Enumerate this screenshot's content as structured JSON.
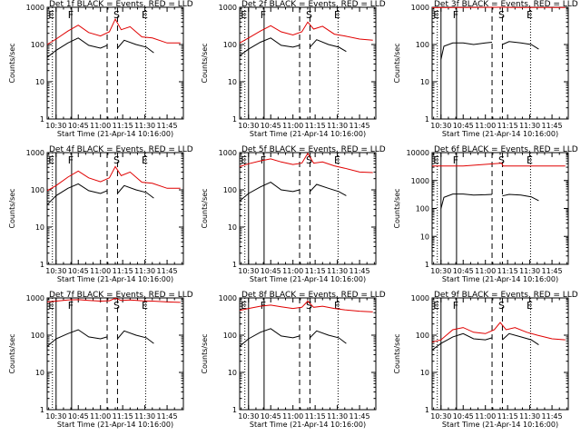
{
  "figure": {
    "xlabel": "Start Time (21-Apr-14 10:16:00)",
    "ylabel": "Counts/sec",
    "xticks": [
      {
        "t": 630,
        "label": "10:30"
      },
      {
        "t": 645,
        "label": "10:45"
      },
      {
        "t": 660,
        "label": "11:00"
      },
      {
        "t": 675,
        "label": "11:15"
      },
      {
        "t": 690,
        "label": "11:30"
      },
      {
        "t": 705,
        "label": "11:45"
      }
    ],
    "yticks": [
      {
        "v": 1,
        "label": "1"
      },
      {
        "v": 10,
        "label": "10"
      },
      {
        "v": 100,
        "label": "100"
      },
      {
        "v": 1000,
        "label": "1000"
      }
    ],
    "yticks_big": [
      {
        "v": 1,
        "label": "1"
      },
      {
        "v": 10,
        "label": "10"
      },
      {
        "v": 100,
        "label": "100"
      },
      {
        "v": 1000,
        "label": "1000"
      },
      {
        "v": 10000,
        "label": "10000"
      }
    ],
    "markers": [
      {
        "t": 627.5,
        "style": "dotted",
        "label": "E"
      },
      {
        "t": 630,
        "style": "solid",
        "label": ""
      },
      {
        "t": 640.5,
        "style": "solid",
        "label": "F"
      },
      {
        "t": 664.5,
        "style": "dashed",
        "label": ""
      },
      {
        "t": 671.5,
        "style": "dashed",
        "label": "S"
      },
      {
        "t": 690.5,
        "style": "dotted",
        "label": "E"
      }
    ],
    "colors": {
      "events": "#000000",
      "lld": "#e00000",
      "axis": "#000000"
    }
  },
  "chart_data": [
    {
      "type": "line",
      "title": "Det 1f BLACK = Events, RED = LLD",
      "xlabel": "Start Time (21-Apr-14 10:16:00)",
      "ylabel": "Counts/sec",
      "xlim": [
        624,
        716
      ],
      "ylim": [
        1,
        1000
      ],
      "scale": "log",
      "series": [
        {
          "name": "LLD",
          "color": "#e00000",
          "t": [
            624,
            630,
            638,
            645,
            652,
            660,
            666,
            670,
            674,
            680,
            688,
            695,
            705,
            714
          ],
          "y": [
            100,
            140,
            230,
            330,
            210,
            170,
            220,
            480,
            250,
            300,
            160,
            150,
            110,
            110
          ]
        },
        {
          "name": "Events",
          "color": "#000000",
          "t": [
            624,
            630,
            638,
            645,
            652,
            660,
            664.5
          ],
          "y": [
            45,
            70,
            110,
            150,
            95,
            80,
            95
          ]
        },
        {
          "name": "Events (after)",
          "color": "#000000",
          "t": [
            671.5,
            676,
            684,
            691,
            696
          ],
          "y": [
            80,
            130,
            100,
            85,
            60
          ]
        }
      ]
    },
    {
      "type": "line",
      "title": "Det 2f BLACK = Events, RED = LLD",
      "xlabel": "Start Time (21-Apr-14 10:16:00)",
      "ylabel": "Counts/sec",
      "xlim": [
        624,
        716
      ],
      "ylim": [
        1,
        1000
      ],
      "scale": "log",
      "series": [
        {
          "name": "LLD",
          "color": "#e00000",
          "t": [
            624,
            630,
            638,
            645,
            652,
            660,
            666,
            670,
            674,
            680,
            688,
            695,
            705,
            714
          ],
          "y": [
            110,
            150,
            230,
            320,
            220,
            180,
            220,
            400,
            260,
            310,
            190,
            170,
            140,
            130
          ]
        },
        {
          "name": "Events",
          "color": "#000000",
          "t": [
            624,
            630,
            638,
            645,
            652,
            660,
            664.5
          ],
          "y": [
            50,
            75,
            115,
            150,
            95,
            85,
            95
          ]
        },
        {
          "name": "Events (after)",
          "color": "#000000",
          "t": [
            671.5,
            676,
            684,
            691,
            696
          ],
          "y": [
            85,
            135,
            100,
            85,
            65
          ]
        }
      ]
    },
    {
      "type": "line",
      "title": "Det 3f BLACK = Events, RED = LLD",
      "xlabel": "Start Time (21-Apr-14 10:16:00)",
      "ylabel": "Counts/sec",
      "xlim": [
        624,
        716
      ],
      "ylim": [
        1,
        1000
      ],
      "scale": "log",
      "series": [
        {
          "name": "LLD",
          "color": "#e00000",
          "t": [
            624,
            645,
            671,
            680,
            714
          ],
          "y": [
            980,
            990,
            1000,
            990,
            985
          ]
        },
        {
          "name": "Events",
          "color": "#000000",
          "t": [
            630,
            632,
            638,
            645,
            652,
            660,
            664.5
          ],
          "y": [
            40,
            90,
            110,
            110,
            100,
            110,
            115
          ]
        },
        {
          "name": "Events (after)",
          "color": "#000000",
          "t": [
            671.5,
            676,
            684,
            691,
            696
          ],
          "y": [
            100,
            120,
            110,
            100,
            75
          ]
        }
      ]
    },
    {
      "type": "line",
      "title": "Det 4f BLACK = Events, RED = LLD",
      "xlabel": "Start Time (21-Apr-14 10:16:00)",
      "ylabel": "Counts/sec",
      "xlim": [
        624,
        716
      ],
      "ylim": [
        1,
        1000
      ],
      "scale": "log",
      "series": [
        {
          "name": "LLD",
          "color": "#e00000",
          "t": [
            624,
            630,
            638,
            645,
            652,
            660,
            666,
            670,
            674,
            680,
            688,
            695,
            705,
            714
          ],
          "y": [
            95,
            130,
            220,
            320,
            210,
            165,
            210,
            420,
            240,
            300,
            160,
            150,
            110,
            110
          ]
        },
        {
          "name": "Events",
          "color": "#000000",
          "t": [
            624,
            630,
            638,
            645,
            652,
            660,
            664.5
          ],
          "y": [
            40,
            70,
            110,
            145,
            95,
            80,
            95
          ]
        },
        {
          "name": "Events (after)",
          "color": "#000000",
          "t": [
            671.5,
            676,
            684,
            691,
            696
          ],
          "y": [
            80,
            130,
            100,
            85,
            60
          ]
        }
      ]
    },
    {
      "type": "line",
      "title": "Det 5f BLACK = Events, RED = LLD",
      "xlabel": "Start Time (21-Apr-14 10:16:00)",
      "ylabel": "Counts/sec",
      "xlim": [
        624,
        716
      ],
      "ylim": [
        1,
        1000
      ],
      "scale": "log",
      "series": [
        {
          "name": "LLD",
          "color": "#e00000",
          "t": [
            624,
            630,
            638,
            645,
            652,
            660,
            666,
            670,
            674,
            680,
            688,
            695,
            705,
            714
          ],
          "y": [
            420,
            500,
            600,
            680,
            560,
            480,
            520,
            950,
            520,
            560,
            440,
            380,
            300,
            290
          ]
        },
        {
          "name": "Events",
          "color": "#000000",
          "t": [
            624,
            630,
            638,
            645,
            652,
            660,
            664.5
          ],
          "y": [
            50,
            80,
            120,
            160,
            100,
            90,
            100
          ]
        },
        {
          "name": "Events (after)",
          "color": "#000000",
          "t": [
            671.5,
            676,
            684,
            691,
            696
          ],
          "y": [
            90,
            140,
            110,
            90,
            70
          ]
        }
      ]
    },
    {
      "type": "line",
      "title": "Det 6f BLACK = Events, RED = LLD",
      "xlabel": "Start Time (21-Apr-14 10:16:00)",
      "ylabel": "Counts/sec",
      "xlim": [
        624,
        716
      ],
      "ylim": [
        1,
        10000
      ],
      "scale": "log",
      "series": [
        {
          "name": "LLD",
          "color": "#e00000",
          "t": [
            624,
            645,
            671,
            672,
            680,
            714
          ],
          "y": [
            3300,
            3300,
            4200,
            3300,
            3300,
            3300
          ]
        },
        {
          "name": "Events",
          "color": "#000000",
          "t": [
            630,
            632,
            638,
            645,
            652,
            660,
            664.5
          ],
          "y": [
            100,
            250,
            330,
            330,
            300,
            310,
            320
          ]
        },
        {
          "name": "Events (after)",
          "color": "#000000",
          "t": [
            671.5,
            676,
            684,
            691,
            696
          ],
          "y": [
            280,
            320,
            300,
            260,
            190
          ]
        }
      ]
    },
    {
      "type": "line",
      "title": "Det 7f BLACK = Events, RED = LLD",
      "xlabel": "Start Time (21-Apr-14 10:16:00)",
      "ylabel": "Counts/sec",
      "xlim": [
        624,
        716
      ],
      "ylim": [
        1,
        1000
      ],
      "scale": "log",
      "series": [
        {
          "name": "LLD",
          "color": "#e00000",
          "t": [
            624,
            630,
            638,
            645,
            652,
            660,
            666,
            670,
            674,
            680,
            688,
            695,
            705,
            714
          ],
          "y": [
            780,
            820,
            880,
            900,
            860,
            820,
            840,
            980,
            860,
            880,
            840,
            820,
            780,
            760
          ]
        },
        {
          "name": "Events",
          "color": "#000000",
          "t": [
            624,
            630,
            638,
            645,
            652,
            660,
            664.5
          ],
          "y": [
            50,
            80,
            110,
            140,
            90,
            80,
            90
          ]
        },
        {
          "name": "Events (after)",
          "color": "#000000",
          "t": [
            671.5,
            676,
            684,
            691,
            696
          ],
          "y": [
            80,
            130,
            100,
            85,
            60
          ]
        }
      ]
    },
    {
      "type": "line",
      "title": "Det 8f BLACK = Events, RED = LLD",
      "xlabel": "Start Time (21-Apr-14 10:16:00)",
      "ylabel": "Counts/sec",
      "xlim": [
        624,
        716
      ],
      "ylim": [
        1,
        1000
      ],
      "scale": "log",
      "series": [
        {
          "name": "LLD",
          "color": "#e00000",
          "t": [
            624,
            630,
            638,
            645,
            652,
            660,
            666,
            670,
            674,
            680,
            688,
            695,
            705,
            714
          ],
          "y": [
            460,
            520,
            600,
            640,
            580,
            520,
            560,
            820,
            560,
            600,
            520,
            480,
            440,
            420
          ]
        },
        {
          "name": "Events",
          "color": "#000000",
          "t": [
            624,
            630,
            638,
            645,
            652,
            660,
            664.5
          ],
          "y": [
            50,
            80,
            120,
            150,
            95,
            85,
            95
          ]
        },
        {
          "name": "Events (after)",
          "color": "#000000",
          "t": [
            671.5,
            676,
            684,
            691,
            696
          ],
          "y": [
            85,
            130,
            100,
            85,
            60
          ]
        }
      ]
    },
    {
      "type": "line",
      "title": "Det 9f BLACK = Events, RED = LLD",
      "xlabel": "Start Time (21-Apr-14 10:16:00)",
      "ylabel": "Counts/sec",
      "xlim": [
        624,
        716
      ],
      "ylim": [
        1,
        1000
      ],
      "scale": "log",
      "series": [
        {
          "name": "LLD",
          "color": "#e00000",
          "t": [
            624,
            630,
            638,
            645,
            652,
            660,
            666,
            670,
            674,
            680,
            688,
            695,
            705,
            714
          ],
          "y": [
            65,
            75,
            140,
            160,
            120,
            110,
            140,
            220,
            140,
            160,
            120,
            100,
            80,
            75
          ]
        },
        {
          "name": "Events",
          "color": "#000000",
          "t": [
            624,
            630,
            638,
            645,
            652,
            660,
            664.5
          ],
          "y": [
            40,
            60,
            90,
            110,
            80,
            75,
            85
          ]
        },
        {
          "name": "Events (after)",
          "color": "#000000",
          "t": [
            671.5,
            676,
            684,
            691,
            696
          ],
          "y": [
            75,
            110,
            90,
            75,
            55
          ]
        }
      ]
    }
  ]
}
